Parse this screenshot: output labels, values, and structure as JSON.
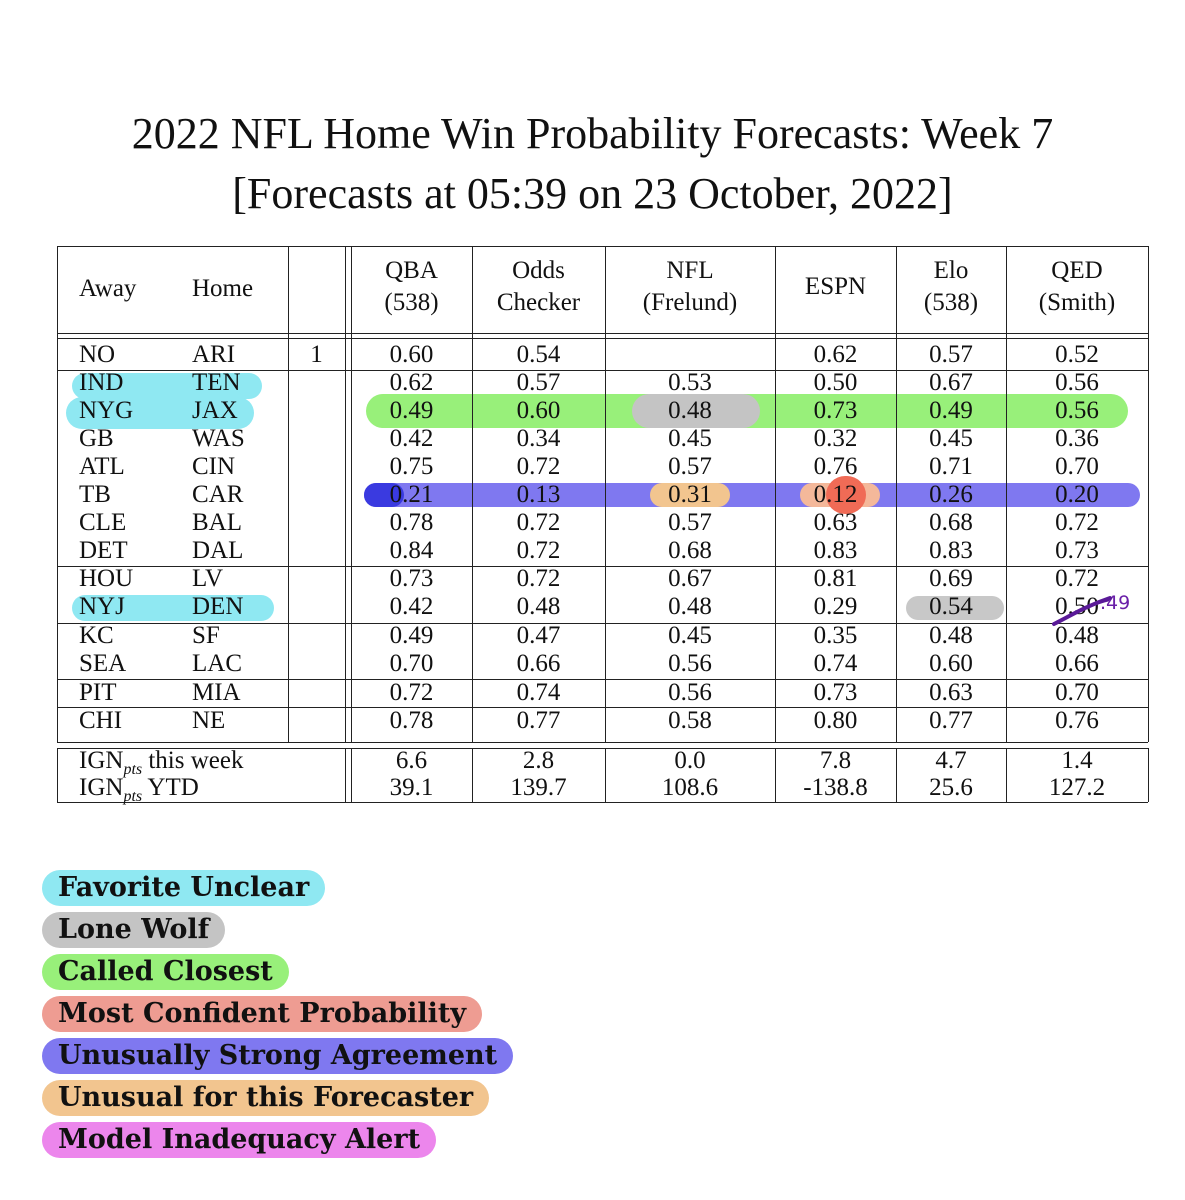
{
  "title": {
    "line1": "2022 NFL Home Win Probability Forecasts: Week 7",
    "line2": "[Forecasts at 05:39 on 23 October, 2022]"
  },
  "table": {
    "headers": {
      "away": "Away",
      "home": "Home",
      "qba": [
        "QBA",
        "(538)"
      ],
      "odds": [
        "Odds",
        "Checker"
      ],
      "nfl": [
        "NFL",
        "(Frelund)"
      ],
      "espn": "ESPN",
      "elo": [
        "Elo",
        "(538)"
      ],
      "qed": [
        "QED",
        "(Smith)"
      ]
    },
    "rows": [
      {
        "away": "NO",
        "home": "ARI",
        "flag": "1",
        "qba": "0.60",
        "odds": "0.54",
        "nfl": "",
        "espn": "0.62",
        "elo": "0.57",
        "qed": "0.52"
      },
      {
        "away": "IND",
        "home": "TEN",
        "flag": "",
        "qba": "0.62",
        "odds": "0.57",
        "nfl": "0.53",
        "espn": "0.50",
        "elo": "0.67",
        "qed": "0.56"
      },
      {
        "away": "NYG",
        "home": "JAX",
        "flag": "",
        "qba": "0.49",
        "odds": "0.60",
        "nfl": "0.48",
        "espn": "0.73",
        "elo": "0.49",
        "qed": "0.56"
      },
      {
        "away": "GB",
        "home": "WAS",
        "flag": "",
        "qba": "0.42",
        "odds": "0.34",
        "nfl": "0.45",
        "espn": "0.32",
        "elo": "0.45",
        "qed": "0.36"
      },
      {
        "away": "ATL",
        "home": "CIN",
        "flag": "",
        "qba": "0.75",
        "odds": "0.72",
        "nfl": "0.57",
        "espn": "0.76",
        "elo": "0.71",
        "qed": "0.70"
      },
      {
        "away": "TB",
        "home": "CAR",
        "flag": "",
        "qba": "0.21",
        "odds": "0.13",
        "nfl": "0.31",
        "espn": "0.12",
        "elo": "0.26",
        "qed": "0.20"
      },
      {
        "away": "CLE",
        "home": "BAL",
        "flag": "",
        "qba": "0.78",
        "odds": "0.72",
        "nfl": "0.57",
        "espn": "0.63",
        "elo": "0.68",
        "qed": "0.72"
      },
      {
        "away": "DET",
        "home": "DAL",
        "flag": "",
        "qba": "0.84",
        "odds": "0.72",
        "nfl": "0.68",
        "espn": "0.83",
        "elo": "0.83",
        "qed": "0.73"
      },
      {
        "away": "HOU",
        "home": "LV",
        "flag": "",
        "qba": "0.73",
        "odds": "0.72",
        "nfl": "0.67",
        "espn": "0.81",
        "elo": "0.69",
        "qed": "0.72"
      },
      {
        "away": "NYJ",
        "home": "DEN",
        "flag": "",
        "qba": "0.42",
        "odds": "0.48",
        "nfl": "0.48",
        "espn": "0.29",
        "elo": "0.54",
        "qed": "0.50"
      },
      {
        "away": "KC",
        "home": "SF",
        "flag": "",
        "qba": "0.49",
        "odds": "0.47",
        "nfl": "0.45",
        "espn": "0.35",
        "elo": "0.48",
        "qed": "0.48"
      },
      {
        "away": "SEA",
        "home": "LAC",
        "flag": "",
        "qba": "0.70",
        "odds": "0.66",
        "nfl": "0.56",
        "espn": "0.74",
        "elo": "0.60",
        "qed": "0.66"
      },
      {
        "away": "PIT",
        "home": "MIA",
        "flag": "",
        "qba": "0.72",
        "odds": "0.74",
        "nfl": "0.56",
        "espn": "0.73",
        "elo": "0.63",
        "qed": "0.70"
      },
      {
        "away": "CHI",
        "home": "NE",
        "flag": "",
        "qba": "0.78",
        "odds": "0.77",
        "nfl": "0.58",
        "espn": "0.80",
        "elo": "0.77",
        "qed": "0.76"
      }
    ],
    "summary": [
      {
        "label_main": "IGN",
        "label_sub": "pts",
        "label_rest": "this week",
        "qba": "6.6",
        "odds": "2.8",
        "nfl": "0.0",
        "espn": "7.8",
        "elo": "4.7",
        "qed": "1.4"
      },
      {
        "label_main": "IGN",
        "label_sub": "pts",
        "label_rest": "YTD",
        "qba": "39.1",
        "odds": "139.7",
        "nfl": "108.6",
        "espn": "-138.8",
        "elo": "25.6",
        "qed": "127.2"
      }
    ],
    "handwritten_correction": ".49"
  },
  "legend": [
    {
      "label": "Favorite Unclear",
      "color": "#8fe8f2"
    },
    {
      "label": "Lone Wolf",
      "color": "#c4c4c4"
    },
    {
      "label": "Called Closest",
      "color": "#98f07a"
    },
    {
      "label": "Most Confident Probability",
      "color": "#ee9c92"
    },
    {
      "label": "Unusually Strong Agreement",
      "color": "#7f78f0"
    },
    {
      "label": "Unusual for this Forecaster",
      "color": "#f2c58f"
    },
    {
      "label": "Model Inadequacy Alert",
      "color": "#ec86ec"
    }
  ]
}
